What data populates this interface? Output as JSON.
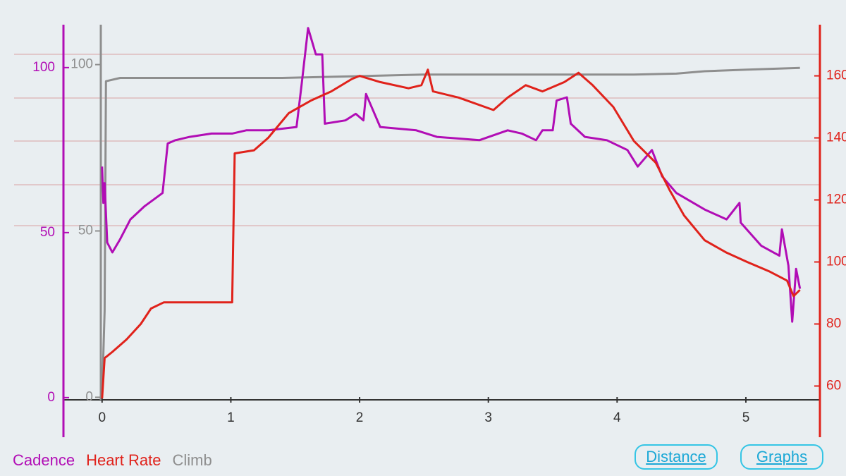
{
  "chart_data": {
    "type": "line",
    "xlim": [
      -0.3,
      5.575
    ],
    "xticks": [
      0,
      1,
      2,
      3,
      4,
      5
    ],
    "ylim": [
      -12,
      113
    ],
    "yticks": [
      0,
      50,
      100
    ],
    "y2lim": [
      43.5,
      176.5
    ],
    "y2ticks": [
      60,
      80,
      100,
      120,
      140,
      160
    ],
    "y3lim": [
      -12,
      112
    ],
    "y3ticks": [
      0,
      50,
      100
    ],
    "series": [
      {
        "name": "Cadence",
        "color": "#b10db5",
        "axis": "y",
        "x": [
          0,
          0.01,
          0.02,
          0.04,
          0.08,
          0.14,
          0.22,
          0.33,
          0.47,
          0.51,
          0.57,
          0.68,
          0.85,
          1.01,
          1.12,
          1.29,
          1.51,
          1.55,
          1.6,
          1.66,
          1.71,
          1.73,
          1.89,
          1.97,
          2.03,
          2.05,
          2.16,
          2.44,
          2.6,
          2.93,
          3.15,
          3.26,
          3.37,
          3.42,
          3.5,
          3.53,
          3.61,
          3.64,
          3.75,
          3.92,
          4.08,
          4.16,
          4.27,
          4.35,
          4.46,
          4.68,
          4.85,
          4.95,
          4.96,
          5.12,
          5.26,
          5.28,
          5.33,
          5.36,
          5.39,
          5.42
        ],
        "values": [
          70,
          59,
          65,
          47,
          44,
          48,
          54,
          58,
          62,
          77,
          78,
          79,
          80,
          80,
          81,
          81,
          82,
          95,
          112,
          104,
          104,
          83,
          84,
          86,
          84,
          92,
          82,
          81,
          79,
          78,
          81,
          80,
          78,
          81,
          81,
          90,
          91,
          83,
          79,
          78,
          75,
          70,
          75,
          67,
          62,
          57,
          54,
          59,
          53,
          46,
          43,
          51,
          40,
          23,
          39,
          33
        ]
      },
      {
        "name": "Heart Rate",
        "color": "#e0221b",
        "axis": "y2",
        "x": [
          0,
          0.02,
          0.08,
          0.19,
          0.3,
          0.38,
          0.48,
          1.01,
          1.03,
          1.18,
          1.29,
          1.45,
          1.62,
          1.78,
          1.94,
          2.0,
          2.16,
          2.38,
          2.48,
          2.53,
          2.57,
          2.77,
          3.04,
          3.15,
          3.29,
          3.42,
          3.59,
          3.7,
          3.81,
          3.97,
          4.13,
          4.3,
          4.41,
          4.52,
          4.68,
          4.85,
          5.01,
          5.18,
          5.32,
          5.37,
          5.42
        ],
        "values": [
          56,
          69,
          71,
          75,
          80,
          85,
          87,
          87,
          135,
          136,
          140,
          148,
          152,
          155,
          159,
          160,
          158,
          156,
          157,
          162,
          155,
          153,
          149,
          153,
          157,
          155,
          158,
          161,
          157,
          150,
          139,
          132,
          123,
          115,
          107,
          103,
          100,
          97,
          94,
          89,
          91
        ]
      },
      {
        "name": "Climb",
        "color": "#8e8e8e",
        "axis": "y3",
        "x": [
          0,
          0.02,
          0.03,
          0.14,
          1.4,
          2.49,
          4.13,
          4.46,
          4.68,
          5.01,
          5.42
        ],
        "values": [
          0,
          26,
          95,
          96,
          96,
          97,
          97,
          97.3,
          98,
          98.5,
          99
        ]
      }
    ]
  },
  "controls": [
    "Distance",
    "Graphs"
  ]
}
